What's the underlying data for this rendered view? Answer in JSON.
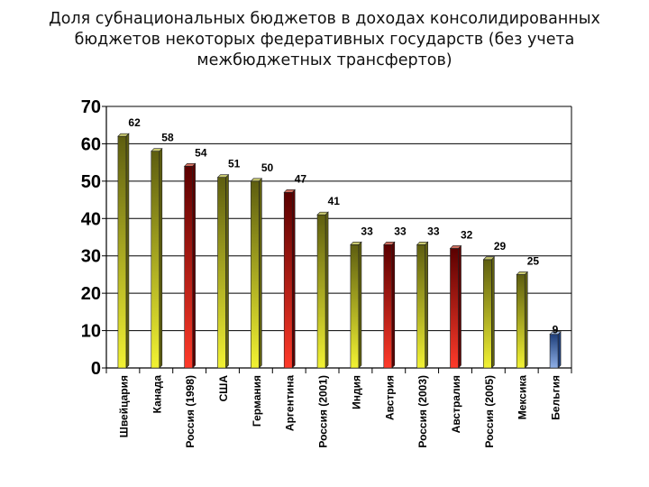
{
  "chart_data": {
    "type": "bar",
    "title": [
      "Доля субнациональных бюджетов в доходах консолидированных",
      "бюджетов некоторых федеративных государств (без учета",
      "межбюджетных трансфертов)"
    ],
    "xlabel": "",
    "ylabel": "",
    "ylim": [
      0,
      70
    ],
    "yticks": [
      "0",
      "10",
      "20",
      "30",
      "40",
      "50",
      "60",
      "70"
    ],
    "grid": true,
    "categories": [
      "Швейцария",
      "Канада",
      "Россия (1998)",
      "США",
      "Германия",
      "Аргентина",
      "Россия (2001)",
      "Индия",
      "Австрия",
      "Россия (2003)",
      "Австралия",
      "Россия (2005)",
      "Мексика",
      "Бельгия"
    ],
    "values": [
      62,
      58,
      54,
      51,
      50,
      47,
      41,
      33,
      33,
      33,
      32,
      29,
      25,
      9
    ],
    "value_labels": [
      "62",
      "58",
      "54",
      "51",
      "50",
      "47",
      "41",
      "33",
      "33",
      "33",
      "32",
      "29",
      "25",
      "9"
    ],
    "bar_colors": [
      "olive",
      "olive",
      "red",
      "olive",
      "olive",
      "red",
      "olive",
      "olive",
      "red",
      "olive",
      "red",
      "olive",
      "olive",
      "blue"
    ]
  },
  "palette": {
    "olive": {
      "light": "#f2f233",
      "dark": "#5e5e10",
      "top": "#c9c970"
    },
    "red": {
      "light": "#ff3a2a",
      "dark": "#5a0000",
      "top": "#d07060"
    },
    "blue": {
      "light": "#8fb0e8",
      "dark": "#1f3f7a",
      "top": "#a8c0e8"
    }
  }
}
